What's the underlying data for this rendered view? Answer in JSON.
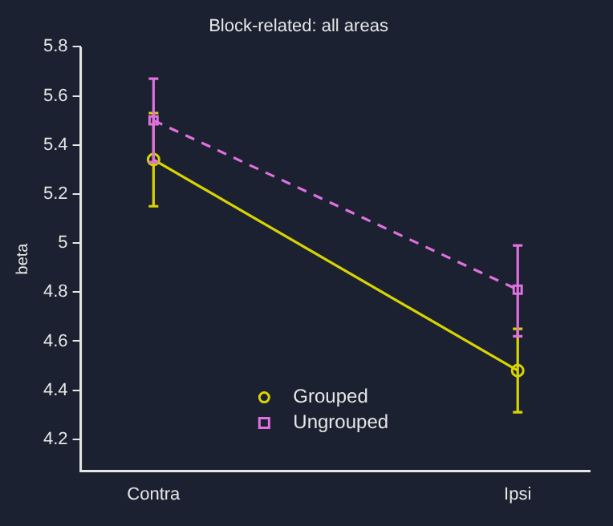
{
  "chart_data": {
    "type": "line",
    "title": "Block-related: all areas",
    "ylabel": "beta",
    "categories": [
      "Contra",
      "Ipsi"
    ],
    "series": [
      {
        "name": "Grouped",
        "color": "#d8d400",
        "values": [
          5.34,
          4.48
        ],
        "errors": [
          [
            5.15,
            5.53
          ],
          [
            4.31,
            4.65
          ]
        ],
        "marker": "circle",
        "line_style": "solid"
      },
      {
        "name": "Ungrouped",
        "color": "#e070e0",
        "values": [
          5.5,
          4.81
        ],
        "errors": [
          [
            5.33,
            5.67
          ],
          [
            4.62,
            4.99
          ]
        ],
        "marker": "square",
        "line_style": "dashed"
      }
    ],
    "ylim": [
      4.07,
      5.8
    ],
    "yticks": [
      4.2,
      4.4,
      4.6,
      4.8,
      5,
      5.2,
      5.4,
      5.6,
      5.8
    ],
    "grid": false,
    "legend": "bottom"
  }
}
